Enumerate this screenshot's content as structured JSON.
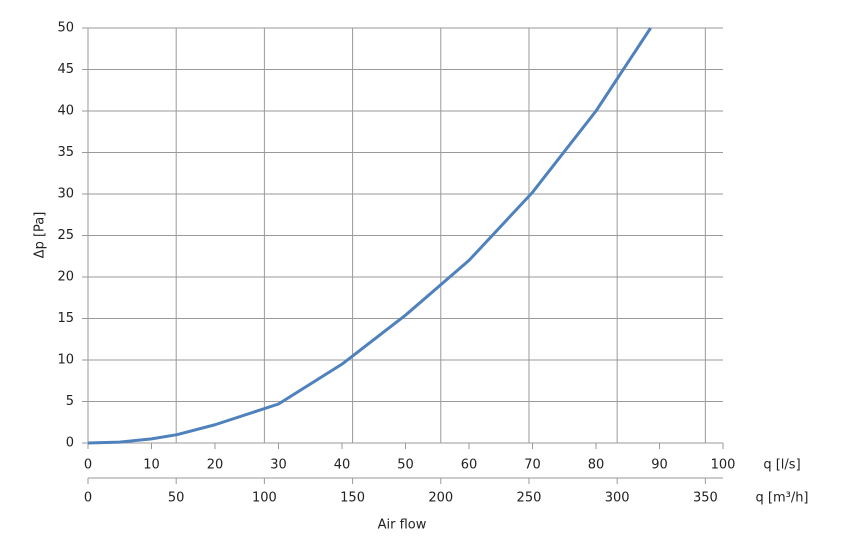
{
  "chart_data": {
    "type": "line",
    "x_label": "q [l/s]",
    "x2_label": "q [m³/h]",
    "axis_title": "Air flow",
    "y_label": "Δp [Pa]",
    "x": [
      0,
      5,
      10,
      14,
      20,
      30,
      40,
      50,
      60,
      70,
      80,
      88.6
    ],
    "series": [
      {
        "name": "Δp",
        "color": "#4f81bd",
        "values": [
          0,
          0.1,
          0.5,
          1,
          2.2,
          4.7,
          9.5,
          15.4,
          22,
          30.2,
          40,
          50
        ]
      }
    ],
    "xlim": [
      0,
      100
    ],
    "xticks": [
      0,
      10,
      20,
      30,
      40,
      50,
      60,
      70,
      80,
      90,
      100
    ],
    "x2lim": [
      0,
      360
    ],
    "x2ticks": [
      0,
      50,
      100,
      150,
      200,
      250,
      300,
      350
    ],
    "ylim": [
      0,
      50
    ],
    "yticks": [
      0,
      5,
      10,
      15,
      20,
      25,
      30,
      35,
      40,
      45,
      50
    ],
    "grid": true
  }
}
